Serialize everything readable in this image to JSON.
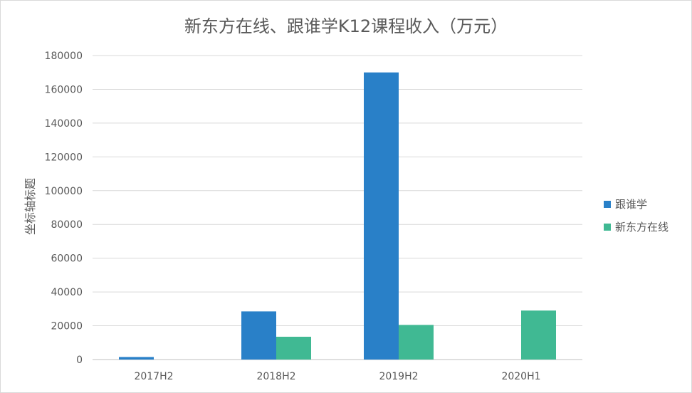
{
  "chart_data": {
    "type": "bar",
    "title": "新东方在线、跟谁学K12课程收入（万元）",
    "xlabel": "",
    "ylabel": "坐标轴标题",
    "categories": [
      "2017H2",
      "2018H2",
      "2019H2",
      "2020H1"
    ],
    "series": [
      {
        "name": "跟谁学",
        "color": "#2980c8",
        "values": [
          1500,
          28500,
          170000,
          0
        ]
      },
      {
        "name": "新东方在线",
        "color": "#40b993",
        "values": [
          0,
          13500,
          20500,
          29000
        ]
      }
    ],
    "ylim": [
      0,
      180000
    ],
    "yticks": [
      "0",
      "20000",
      "40000",
      "60000",
      "80000",
      "100000",
      "120000",
      "140000",
      "160000",
      "180000"
    ],
    "grid": true,
    "legend_position": "right"
  }
}
